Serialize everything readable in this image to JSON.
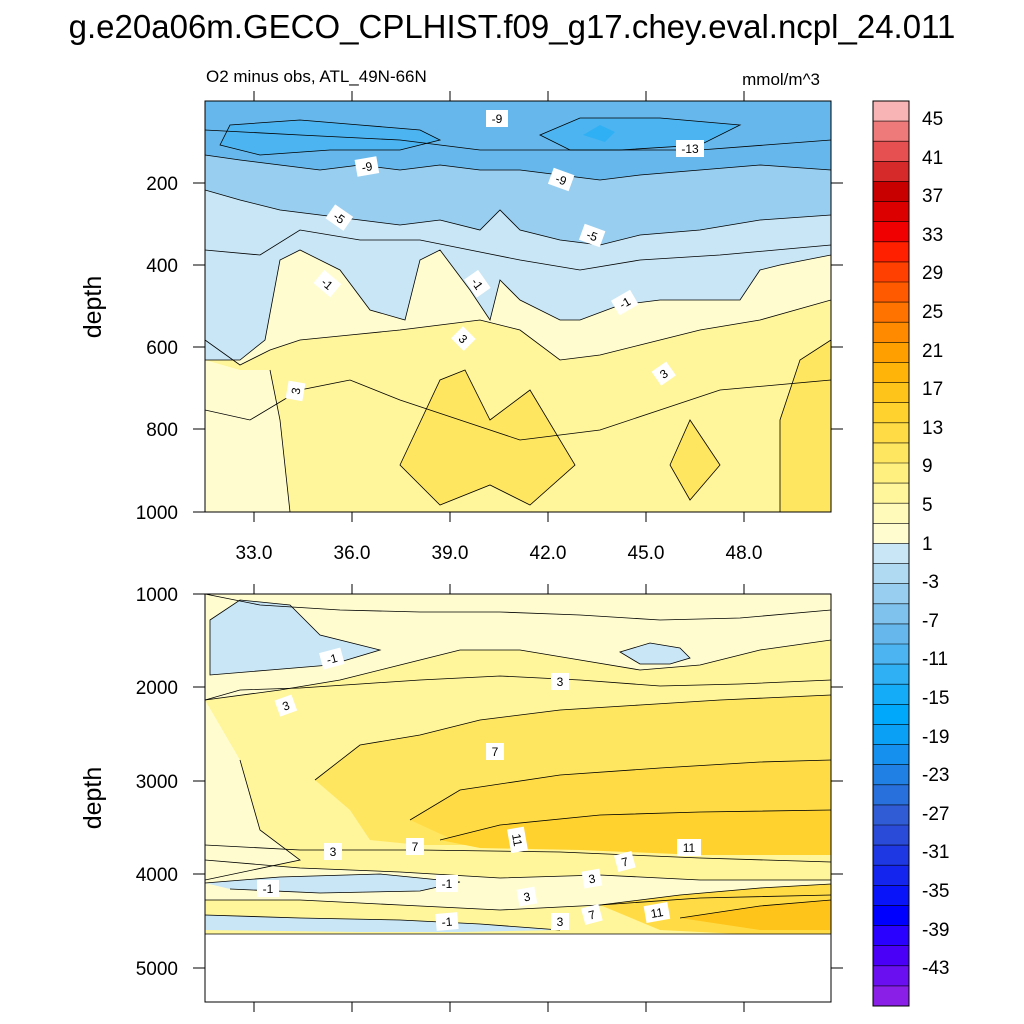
{
  "chart_data": [
    {
      "type": "contour",
      "title": "g.e20a06m.GECO_CPLHIST.f09_g17.chey.eval.ncpl_24.011",
      "subtitle_left": "O2 minus obs, ATL_49N-66N",
      "units": "mmol/m^3",
      "ylabel": "depth",
      "xlim": [
        31,
        50.5
      ],
      "ylim": [
        1000,
        0
      ],
      "x_ticks": [
        "33.0",
        "36.0",
        "39.0",
        "42.0",
        "45.0",
        "48.0"
      ],
      "y_ticks": [
        "200",
        "400",
        "600",
        "800",
        "1000"
      ],
      "contour_labels": [
        "-9",
        "-13",
        "-9",
        "-9",
        "-5",
        "-5",
        "-1",
        "-1",
        "-1",
        "3",
        "3",
        "3"
      ]
    },
    {
      "type": "contour",
      "ylabel": "depth",
      "ylim": [
        5400,
        1000
      ],
      "y_ticks": [
        "1000",
        "2000",
        "3000",
        "4000",
        "5000"
      ],
      "contour_labels": [
        "-1",
        "3",
        "3",
        "7",
        "11",
        "11",
        "3",
        "7",
        "7",
        "3",
        "-1",
        "-1",
        "3",
        "3",
        "7",
        "11",
        "-1"
      ]
    }
  ],
  "colorbar": {
    "labels": [
      "45",
      "41",
      "37",
      "33",
      "29",
      "25",
      "21",
      "17",
      "13",
      "9",
      "5",
      "1",
      "-3",
      "-7",
      "-11",
      "-15",
      "-19",
      "-23",
      "-27",
      "-31",
      "-35",
      "-39",
      "-43"
    ],
    "colors": [
      "#f8b4b4",
      "#ee7a7a",
      "#e65050",
      "#d62a2a",
      "#c80000",
      "#dc0000",
      "#f00000",
      "#ff2000",
      "#ff4000",
      "#ff5a00",
      "#ff7300",
      "#ff8a00",
      "#ffa000",
      "#ffb40a",
      "#ffc41a",
      "#ffd22e",
      "#ffdc46",
      "#ffe660",
      "#fff080",
      "#fff59a",
      "#fffaba",
      "#fffdd0",
      "#c8e6f5",
      "#b0daf2",
      "#98cef0",
      "#80c2ee",
      "#66b8ec",
      "#4cb4f0",
      "#30b0f4",
      "#14acf8",
      "#00a8fc",
      "#0aa0f5",
      "#1690ee",
      "#2080e4",
      "#2870dc",
      "#305cd6",
      "#2a4ad8",
      "#1e38e4",
      "#1426ee",
      "#0a14f8",
      "#0000ff",
      "#2a00ff",
      "#4a00f6",
      "#6a10f0",
      "#8a20e8"
    ]
  },
  "colors": {
    "frame": "#000000",
    "contour_line": "#000000",
    "missing": "#ffffff"
  }
}
